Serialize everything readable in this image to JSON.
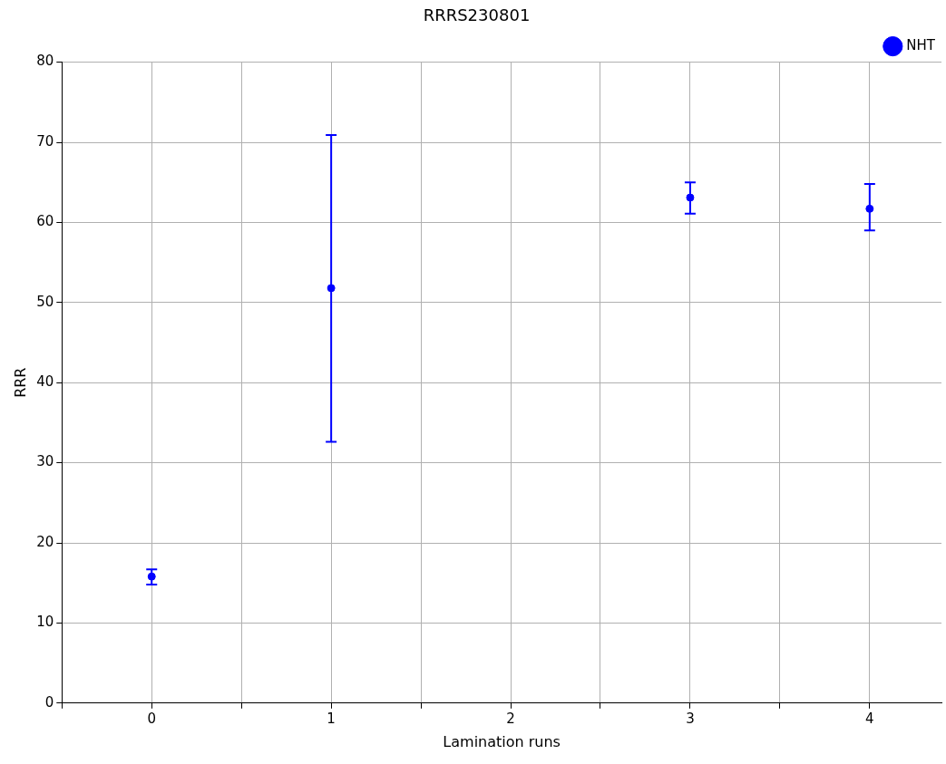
{
  "chart_data": {
    "type": "scatter",
    "title": "RRRS230801",
    "xlabel": "Lamination runs",
    "ylabel": "RRR",
    "x": [
      0,
      1,
      3,
      4
    ],
    "series": [
      {
        "name": "NHT",
        "color": "#0000ff",
        "values": [
          15.8,
          51.8,
          63.1,
          61.7
        ],
        "errors": [
          [
            14.8,
            16.7
          ],
          [
            32.6,
            70.9
          ],
          [
            61.1,
            65.0
          ],
          [
            59.0,
            64.8
          ]
        ]
      }
    ],
    "xlim": [
      -0.5,
      4.4
    ],
    "xticks": [
      {
        "value": -0.5,
        "label": null
      },
      0,
      {
        "value": 0.5,
        "label": null
      },
      1,
      {
        "value": 1.5,
        "label": null
      },
      2,
      {
        "value": 2.5,
        "label": null
      },
      3,
      {
        "value": 3.5,
        "label": null
      },
      4
    ],
    "ylim": [
      0,
      80
    ],
    "yticks": [
      0,
      10,
      20,
      30,
      40,
      50,
      60,
      70,
      80
    ],
    "grid": true,
    "legend": "top right",
    "marker": "circle"
  }
}
